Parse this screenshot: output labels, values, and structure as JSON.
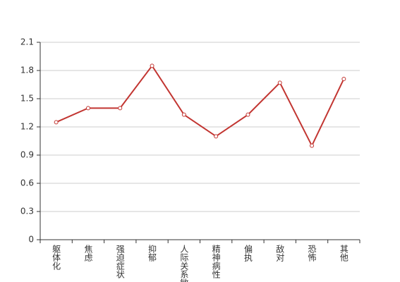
{
  "chart_data": {
    "type": "line",
    "categories": [
      "躯体化",
      "焦虑",
      "强迫症状",
      "抑郁",
      "人际关系敏感",
      "精神病性",
      "偏执",
      "敌对",
      "恐怖",
      "其他"
    ],
    "series": [
      {
        "color": "#c23531",
        "values": [
          1.25,
          1.4,
          1.4,
          1.85,
          1.33,
          1.1,
          1.33,
          1.67,
          1.0,
          1.71
        ]
      }
    ],
    "ylim": [
      0,
      2.1
    ],
    "yticks": [
      0,
      0.3,
      0.6,
      0.9,
      1.2,
      1.5,
      1.8,
      2.1
    ],
    "grid": true
  }
}
